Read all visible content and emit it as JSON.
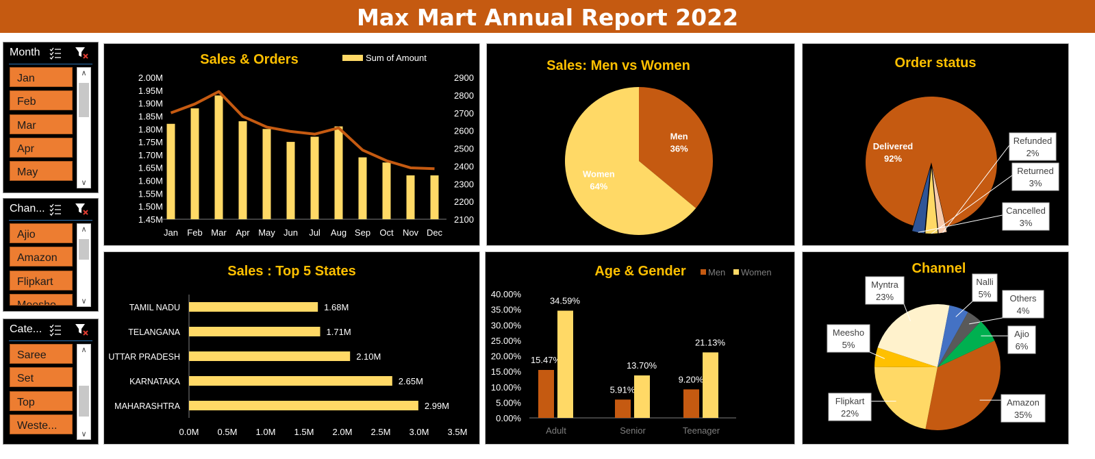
{
  "report_title": "Max Mart Annual Report 2022",
  "colors": {
    "men": "#c55a11",
    "women": "#ffd966",
    "accent": "#ffc000",
    "line": "#c55a11"
  },
  "slicers": [
    {
      "header": "Month",
      "items": [
        "Jan",
        "Feb",
        "Mar",
        "Apr",
        "May"
      ]
    },
    {
      "header": "Chan...",
      "items": [
        "Ajio",
        "Amazon",
        "Flipkart",
        "Meesho"
      ]
    },
    {
      "header": "Cate...",
      "items": [
        "Saree",
        "Set",
        "Top",
        "Weste..."
      ]
    }
  ],
  "chart_data": [
    {
      "type": "bar",
      "title": "Sales & Orders",
      "legend": "Sum of Amount",
      "categories": [
        "Jan",
        "Feb",
        "Mar",
        "Apr",
        "May",
        "Jun",
        "Jul",
        "Aug",
        "Sep",
        "Oct",
        "Nov",
        "Dec"
      ],
      "series": [
        {
          "name": "Sum of Amount",
          "type": "bar",
          "axis": "left",
          "values": [
            1.82,
            1.88,
            1.93,
            1.83,
            1.8,
            1.75,
            1.77,
            1.81,
            1.69,
            1.67,
            1.62,
            1.62
          ]
        },
        {
          "type": "line",
          "axis": "right",
          "values": [
            2700,
            2750,
            2820,
            2680,
            2620,
            2595,
            2580,
            2615,
            2490,
            2430,
            2390,
            2385
          ]
        }
      ],
      "ylim": [
        1.45,
        2.0
      ],
      "y_ticks": [
        "2.00M",
        "1.95M",
        "1.90M",
        "1.85M",
        "1.80M",
        "1.75M",
        "1.70M",
        "1.65M",
        "1.60M",
        "1.55M",
        "1.50M",
        "1.45M"
      ],
      "y2lim": [
        2100,
        2900
      ],
      "y2_ticks": [
        "2900",
        "2800",
        "2700",
        "2600",
        "2500",
        "2400",
        "2300",
        "2200",
        "2100"
      ]
    },
    {
      "type": "pie",
      "title": "Sales: Men vs Women",
      "slices": [
        {
          "label": "Men",
          "value": 36,
          "pct": "36%",
          "color": "#c55a11"
        },
        {
          "label": "Women",
          "value": 64,
          "pct": "64%",
          "color": "#ffd966"
        }
      ]
    },
    {
      "type": "pie",
      "title": "Order status",
      "slices": [
        {
          "label": "Delivered",
          "value": 92,
          "pct": "92%",
          "color": "#c55a11"
        },
        {
          "label": "Refunded",
          "value": 2,
          "pct": "2%",
          "color": "#f8cbad"
        },
        {
          "label": "Returned",
          "value": 3,
          "pct": "3%",
          "color": "#ffd966"
        },
        {
          "label": "Cancelled",
          "value": 3,
          "pct": "3%",
          "color": "#2f5597"
        }
      ]
    },
    {
      "type": "bar",
      "orientation": "horizontal",
      "title": "Sales : Top 5 States",
      "categories": [
        "TAMIL NADU",
        "TELANGANA",
        "UTTAR PRADESH",
        "KARNATAKA",
        "MAHARASHTRA"
      ],
      "values": [
        1.68,
        1.71,
        2.1,
        2.65,
        2.99
      ],
      "value_labels": [
        "1.68M",
        "1.71M",
        "2.10M",
        "2.65M",
        "2.99M"
      ],
      "xlim": [
        0,
        3.5
      ],
      "x_ticks": [
        "0.0M",
        "0.5M",
        "1.0M",
        "1.5M",
        "2.0M",
        "2.5M",
        "3.0M",
        "3.5M"
      ]
    },
    {
      "type": "bar",
      "title": "Age & Gender",
      "categories": [
        "Adult",
        "Senior",
        "Teenager"
      ],
      "series": [
        {
          "name": "Men",
          "values": [
            15.47,
            5.91,
            9.2
          ],
          "labels": [
            "15.47%",
            "5.91%",
            "9.20%"
          ],
          "color": "#c55a11"
        },
        {
          "name": "Women",
          "values": [
            34.59,
            13.7,
            21.13
          ],
          "labels": [
            "34.59%",
            "13.70%",
            "21.13%"
          ],
          "color": "#ffd966"
        }
      ],
      "ylim": [
        0,
        40
      ],
      "y_ticks": [
        "40.00%",
        "35.00%",
        "30.00%",
        "25.00%",
        "20.00%",
        "15.00%",
        "10.00%",
        "5.00%",
        "0.00%"
      ]
    },
    {
      "type": "pie",
      "title": "Channel",
      "slices": [
        {
          "label": "Amazon",
          "value": 35,
          "pct": "35%",
          "color": "#c55a11"
        },
        {
          "label": "Flipkart",
          "value": 22,
          "pct": "22%",
          "color": "#ffd966"
        },
        {
          "label": "Meesho",
          "value": 5,
          "pct": "5%",
          "color": "#ffc000"
        },
        {
          "label": "Myntra",
          "value": 23,
          "pct": "23%",
          "color": "#fff2cc"
        },
        {
          "label": "Nalli",
          "value": 5,
          "pct": "5%",
          "color": "#4472c4"
        },
        {
          "label": "Others",
          "value": 4,
          "pct": "4%",
          "color": "#595959"
        },
        {
          "label": "Ajio",
          "value": 6,
          "pct": "6%",
          "color": "#00b050"
        }
      ]
    }
  ]
}
